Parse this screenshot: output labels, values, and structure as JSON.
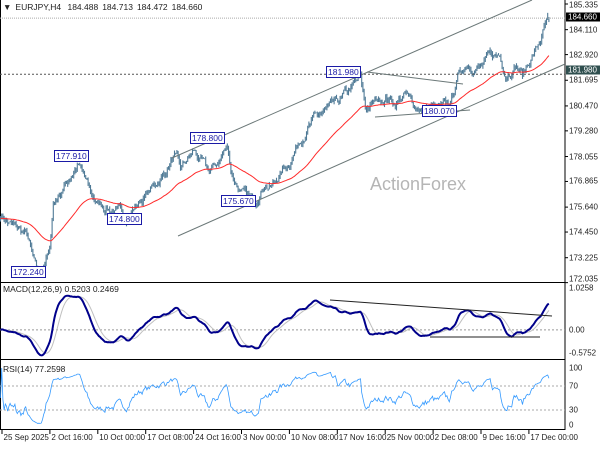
{
  "header": {
    "symbol": "EURJPY,H4",
    "open": "184.488",
    "high": "184.713",
    "low": "184.472",
    "close": "184.660"
  },
  "watermark": "ActionForex",
  "chart_data": {
    "type": "candlestick",
    "symbol": "EURJPY",
    "timeframe": "H4",
    "price_axis": {
      "range": [
        172.035,
        185.335
      ],
      "ticks": [
        "185.335",
        "184.110",
        "182.920",
        "181.695",
        "180.470",
        "179.280",
        "178.055",
        "176.865",
        "175.640",
        "174.450",
        "173.225",
        "172.035"
      ]
    },
    "time_axis": {
      "ticks": [
        "25 Sep 2025",
        "2 Oct 16:00",
        "10 Oct 00:00",
        "17 Oct 08:00",
        "24 Oct 16:00",
        "3 Nov 00:00",
        "10 Nov 08:00",
        "17 Nov 16:00",
        "25 Nov 00:00",
        "2 Dec 08:00",
        "9 Dec 16:00",
        "17 Dec 00:00"
      ]
    },
    "current_price": "184.660",
    "marked_level": "181.980",
    "swing_labels": [
      "177.910",
      "172.240",
      "174.800",
      "178.800",
      "175.670",
      "181.980",
      "180.070"
    ],
    "close_path": [
      {
        "time": "24 Sep 16:00",
        "close": 175.3
      },
      {
        "time": "26 Sep 00:00",
        "close": 174.9
      },
      {
        "time": "29 Sep 00:00",
        "close": 174.3
      },
      {
        "time": "30 Sep 08:00",
        "close": 172.7
      },
      {
        "time": "1 Oct 00:00",
        "close": 172.4
      },
      {
        "time": "2 Oct 00:00",
        "close": 173.2
      },
      {
        "time": "2 Oct 16:00",
        "close": 173.5
      },
      {
        "time": "3 Oct 04:00",
        "close": 175.8
      },
      {
        "time": "6 Oct 00:00",
        "close": 177.2
      },
      {
        "time": "7 Oct 00:00",
        "close": 177.7
      },
      {
        "time": "8 Oct 00:00",
        "close": 177.0
      },
      {
        "time": "9 Oct 00:00",
        "close": 176.2
      },
      {
        "time": "10 Oct 00:00",
        "close": 175.8
      },
      {
        "time": "13 Oct 00:00",
        "close": 175.4
      },
      {
        "time": "14 Oct 12:00",
        "close": 175.2
      },
      {
        "time": "15 Oct 12:00",
        "close": 175.6
      },
      {
        "time": "17 Oct 08:00",
        "close": 176.2
      },
      {
        "time": "20 Oct 08:00",
        "close": 177.3
      },
      {
        "time": "21 Oct 16:00",
        "close": 178.1
      },
      {
        "time": "22 Oct 16:00",
        "close": 177.4
      },
      {
        "time": "24 Oct 00:00",
        "close": 178.0
      },
      {
        "time": "24 Oct 16:00",
        "close": 178.3
      },
      {
        "time": "27 Oct 16:00",
        "close": 177.3
      },
      {
        "time": "29 Oct 00:00",
        "close": 177.6
      },
      {
        "time": "31 Oct 08:00",
        "close": 178.6
      },
      {
        "time": "1 Nov 00:00",
        "close": 177.3
      },
      {
        "time": "3 Nov 00:00",
        "close": 176.3
      },
      {
        "time": "5 Nov 00:00",
        "close": 175.9
      },
      {
        "time": "6 Nov 12:00",
        "close": 176.8
      },
      {
        "time": "7 Nov 12:00",
        "close": 176.6
      },
      {
        "time": "10 Nov 08:00",
        "close": 177.8
      },
      {
        "time": "12 Nov 00:00",
        "close": 178.9
      },
      {
        "time": "14 Nov 00:00",
        "close": 179.8
      },
      {
        "time": "17 Nov 16:00",
        "close": 180.6
      },
      {
        "time": "19 Nov 12:00",
        "close": 181.2
      },
      {
        "time": "21 Nov 04:00",
        "close": 181.8
      },
      {
        "time": "22 Nov 00:00",
        "close": 180.3
      },
      {
        "time": "23 Nov 00:00",
        "close": 180.6
      },
      {
        "time": "25 Nov 00:00",
        "close": 180.9
      },
      {
        "time": "26 Nov 12:00",
        "close": 180.6
      },
      {
        "time": "28 Nov 00:00",
        "close": 181.0
      },
      {
        "time": "29 Nov 12:00",
        "close": 180.5
      },
      {
        "time": "1 Dec 00:00",
        "close": 180.3
      },
      {
        "time": "2 Dec 08:00",
        "close": 180.4
      },
      {
        "time": "3 Dec 00:00",
        "close": 180.3
      },
      {
        "time": "5 Dec 00:00",
        "close": 180.5
      },
      {
        "time": "6 Dec 00:00",
        "close": 181.8
      },
      {
        "time": "7 Dec 12:00",
        "close": 182.5
      },
      {
        "time": "9 Dec 16:00",
        "close": 182.3
      },
      {
        "time": "11 Dec 00:00",
        "close": 182.8
      },
      {
        "time": "12 Dec 12:00",
        "close": 182.9
      },
      {
        "time": "13 Dec 12:00",
        "close": 182.0
      },
      {
        "time": "15 Dec 00:00",
        "close": 182.5
      },
      {
        "time": "16 Dec 00:00",
        "close": 181.9
      },
      {
        "time": "17 Dec 00:00",
        "close": 182.6
      },
      {
        "time": "18 Dec 00:00",
        "close": 183.1
      },
      {
        "time": "18 Dec 16:00",
        "close": 183.5
      },
      {
        "time": "19 Dec 12:00",
        "close": 184.3
      },
      {
        "time": "20 Dec 04:00",
        "close": 184.66
      }
    ],
    "moving_average_color": "#ff2a2a",
    "candle_color": "#4f7a96",
    "macd": {
      "label": "MACD(12,26,9)",
      "macd": "0.5203",
      "signal": "0.2469",
      "range": [
        -0.5752,
        1.0258
      ],
      "ticks": [
        "1.0258",
        "0.00",
        "-0.5752"
      ],
      "macd_color": "#00008b",
      "signal_color": "#c0c0c0"
    },
    "rsi": {
      "label": "RSI(14)",
      "value": "77.2598",
      "range": [
        0,
        100
      ],
      "ticks": [
        "100",
        "70",
        "30",
        "0"
      ],
      "color": "#3399ff"
    }
  }
}
